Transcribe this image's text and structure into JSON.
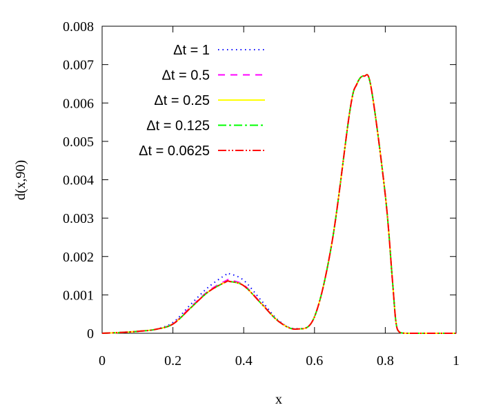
{
  "chart_data": {
    "type": "line",
    "title": "",
    "xlabel": "x",
    "ylabel": "d(x,90)",
    "xlim": [
      0,
      1
    ],
    "ylim": [
      0,
      0.008
    ],
    "x_ticks": [
      "0",
      "0.2",
      "0.4",
      "0.6",
      "0.8",
      "1"
    ],
    "y_ticks": [
      "0",
      "0.001",
      "0.002",
      "0.003",
      "0.004",
      "0.005",
      "0.006",
      "0.007",
      "0.008"
    ],
    "grid": false,
    "legend_position": "top-left",
    "series": [
      {
        "name": "Δt = 1",
        "color": "#0000ff",
        "dash": "dotted",
        "x": [
          0,
          0.05,
          0.1,
          0.15,
          0.2,
          0.25,
          0.3,
          0.35,
          0.36,
          0.4,
          0.45,
          0.5,
          0.55,
          0.6,
          0.65,
          0.7,
          0.72,
          0.74,
          0.76,
          0.8,
          0.82,
          0.83,
          0.84,
          0.86,
          0.9,
          0.95,
          1.0
        ],
        "y": [
          0,
          2e-05,
          5e-05,
          0.0001,
          0.00028,
          0.00075,
          0.0012,
          0.00153,
          0.00155,
          0.00138,
          0.00085,
          0.00032,
          0.00012,
          0.00043,
          0.0024,
          0.0058,
          0.0065,
          0.0067,
          0.0064,
          0.0036,
          0.0014,
          0.0003,
          3e-05,
          0,
          0,
          0,
          0
        ]
      },
      {
        "name": "Δt = 0.5",
        "color": "#ff00ff",
        "dash": "dashed",
        "x": [
          0,
          0.05,
          0.1,
          0.15,
          0.2,
          0.25,
          0.3,
          0.35,
          0.36,
          0.4,
          0.45,
          0.5,
          0.55,
          0.6,
          0.65,
          0.7,
          0.72,
          0.74,
          0.76,
          0.8,
          0.82,
          0.83,
          0.84,
          0.86,
          0.9,
          0.95,
          1.0
        ],
        "y": [
          0,
          2e-05,
          5e-05,
          0.0001,
          0.00025,
          0.00068,
          0.0011,
          0.00137,
          0.00138,
          0.00126,
          0.00078,
          0.0003,
          0.00011,
          0.00043,
          0.0024,
          0.0058,
          0.0065,
          0.0067,
          0.0064,
          0.0036,
          0.0014,
          0.0003,
          3e-05,
          0,
          0,
          0,
          0
        ]
      },
      {
        "name": "Δt = 0.25",
        "color": "#ffff00",
        "dash": "solid",
        "x": [
          0,
          0.05,
          0.1,
          0.15,
          0.2,
          0.25,
          0.3,
          0.35,
          0.36,
          0.4,
          0.45,
          0.5,
          0.55,
          0.6,
          0.65,
          0.7,
          0.72,
          0.74,
          0.76,
          0.8,
          0.82,
          0.83,
          0.84,
          0.86,
          0.9,
          0.95,
          1.0
        ],
        "y": [
          0,
          2e-05,
          5e-05,
          0.0001,
          0.00024,
          0.00066,
          0.00108,
          0.00134,
          0.00135,
          0.00124,
          0.00077,
          0.0003,
          0.00011,
          0.00043,
          0.0024,
          0.0058,
          0.0065,
          0.0067,
          0.0064,
          0.0036,
          0.0014,
          0.0003,
          3e-05,
          0,
          0,
          0,
          0
        ]
      },
      {
        "name": "Δt = 0.125",
        "color": "#00ff00",
        "dash": "dashdot",
        "x": [
          0,
          0.05,
          0.1,
          0.15,
          0.2,
          0.25,
          0.3,
          0.35,
          0.36,
          0.4,
          0.45,
          0.5,
          0.55,
          0.6,
          0.65,
          0.7,
          0.72,
          0.74,
          0.76,
          0.8,
          0.82,
          0.83,
          0.84,
          0.86,
          0.9,
          0.95,
          1.0
        ],
        "y": [
          0,
          2e-05,
          5e-05,
          0.0001,
          0.00024,
          0.00066,
          0.00108,
          0.00134,
          0.00135,
          0.00124,
          0.00077,
          0.0003,
          0.00011,
          0.00043,
          0.0024,
          0.0058,
          0.0065,
          0.0067,
          0.0064,
          0.0036,
          0.0014,
          0.0003,
          3e-05,
          0,
          0,
          0,
          0
        ]
      },
      {
        "name": "Δt = 0.0625",
        "color": "#ff0000",
        "dash": "dashdotdot",
        "x": [
          0,
          0.05,
          0.1,
          0.15,
          0.2,
          0.25,
          0.3,
          0.35,
          0.36,
          0.4,
          0.45,
          0.5,
          0.55,
          0.6,
          0.65,
          0.7,
          0.72,
          0.74,
          0.76,
          0.8,
          0.82,
          0.83,
          0.84,
          0.86,
          0.9,
          0.95,
          1.0
        ],
        "y": [
          0,
          2e-05,
          5e-05,
          0.0001,
          0.00024,
          0.00066,
          0.00108,
          0.00134,
          0.00135,
          0.00124,
          0.00077,
          0.0003,
          0.00011,
          0.00043,
          0.0024,
          0.0058,
          0.0065,
          0.0067,
          0.0064,
          0.0036,
          0.0014,
          0.0003,
          3e-05,
          0,
          0,
          0,
          0
        ]
      }
    ]
  }
}
